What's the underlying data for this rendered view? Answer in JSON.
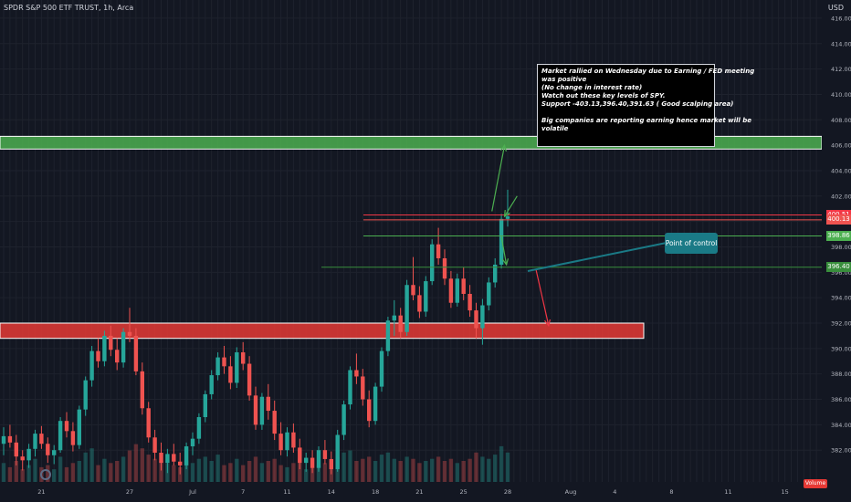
{
  "header": {
    "title": "SPDR S&P 500 ETF TRUST, 1h, Arca",
    "currency": "USD"
  },
  "chart_data": {
    "type": "candlestick",
    "symbol": "SPY",
    "price_range": [
      379.5,
      417
    ],
    "price_ticks": [
      "416.00",
      "414.00",
      "412.00",
      "410.00",
      "408.00",
      "406.00",
      "404.00",
      "402.00",
      "400.00",
      "398.00",
      "396.00",
      "394.00",
      "392.00",
      "390.00",
      "388.00",
      "386.00",
      "384.00",
      "382.00"
    ],
    "time_ticks": [
      {
        "label": "21",
        "i": 6
      },
      {
        "label": "27",
        "i": 20
      },
      {
        "label": "Jul",
        "i": 30
      },
      {
        "label": "7",
        "i": 38
      },
      {
        "label": "11",
        "i": 45
      },
      {
        "label": "14",
        "i": 52
      },
      {
        "label": "18",
        "i": 59
      },
      {
        "label": "21",
        "i": 66
      },
      {
        "label": "25",
        "i": 73
      },
      {
        "label": "28",
        "i": 80
      },
      {
        "label": "Aug",
        "i": 90
      },
      {
        "label": "4",
        "i": 97
      },
      {
        "label": "8",
        "i": 106
      },
      {
        "label": "11",
        "i": 115
      },
      {
        "label": "15",
        "i": 124
      }
    ],
    "key_levels": [
      {
        "price": 400.51,
        "label": "400.51",
        "color": "#f23645"
      },
      {
        "price": 400.13,
        "label": "400.13",
        "color": "#ef5350"
      },
      {
        "price": 398.86,
        "label": "398.86",
        "color": "#4caf50"
      },
      {
        "price": 396.4,
        "label": "396.40",
        "color": "#388e3c"
      }
    ],
    "zones": [
      {
        "type": "resistance",
        "from": 405.7,
        "to": 406.7,
        "color": "#4caf50"
      },
      {
        "type": "support",
        "from": 390.8,
        "to": 392.0,
        "color": "#e53935"
      }
    ],
    "candles": [
      [
        382.5,
        383.8,
        381.6,
        383.1
      ],
      [
        383.1,
        384.0,
        382.2,
        382.6
      ],
      [
        382.6,
        383.2,
        380.8,
        381.5
      ],
      [
        381.5,
        382.0,
        380.4,
        381.2
      ],
      [
        381.2,
        382.5,
        380.6,
        382.1
      ],
      [
        382.1,
        383.6,
        381.5,
        383.3
      ],
      [
        383.3,
        383.9,
        382.1,
        382.5
      ],
      [
        382.5,
        383.0,
        381.0,
        381.6
      ],
      [
        381.6,
        382.4,
        380.9,
        382.0
      ],
      [
        382.0,
        384.6,
        381.8,
        384.3
      ],
      [
        384.3,
        385.0,
        383.0,
        383.5
      ],
      [
        383.5,
        384.2,
        381.9,
        382.4
      ],
      [
        382.4,
        385.5,
        382.1,
        385.2
      ],
      [
        385.2,
        387.8,
        384.7,
        387.5
      ],
      [
        387.5,
        390.2,
        387.0,
        389.8
      ],
      [
        389.8,
        390.8,
        388.5,
        389.0
      ],
      [
        389.0,
        391.4,
        388.6,
        391.0
      ],
      [
        391.0,
        391.8,
        389.4,
        389.9
      ],
      [
        389.9,
        390.8,
        388.3,
        388.9
      ],
      [
        388.9,
        391.6,
        388.5,
        391.3
      ],
      [
        391.3,
        393.2,
        390.5,
        391.0
      ],
      [
        391.0,
        391.6,
        387.9,
        388.2
      ],
      [
        388.2,
        388.9,
        384.8,
        385.3
      ],
      [
        385.3,
        385.8,
        382.6,
        383.0
      ],
      [
        383.0,
        383.6,
        381.2,
        381.8
      ],
      [
        381.8,
        382.6,
        380.4,
        381.0
      ],
      [
        381.0,
        382.1,
        380.2,
        381.7
      ],
      [
        381.7,
        382.5,
        380.8,
        381.1
      ],
      [
        381.1,
        381.8,
        380.1,
        380.8
      ],
      [
        380.8,
        382.6,
        380.5,
        382.3
      ],
      [
        382.3,
        383.4,
        381.6,
        382.9
      ],
      [
        382.9,
        384.9,
        382.5,
        384.6
      ],
      [
        384.6,
        386.7,
        384.2,
        386.4
      ],
      [
        386.4,
        388.3,
        386.0,
        387.9
      ],
      [
        387.9,
        389.7,
        387.5,
        389.3
      ],
      [
        389.3,
        390.2,
        388.0,
        388.6
      ],
      [
        388.6,
        389.4,
        386.8,
        387.3
      ],
      [
        387.3,
        390.1,
        386.9,
        389.7
      ],
      [
        389.7,
        390.5,
        388.3,
        388.8
      ],
      [
        388.8,
        389.4,
        385.9,
        386.3
      ],
      [
        386.3,
        387.0,
        383.6,
        384.0
      ],
      [
        384.0,
        386.5,
        383.6,
        386.2
      ],
      [
        386.2,
        387.2,
        384.4,
        385.1
      ],
      [
        385.1,
        385.9,
        382.8,
        383.3
      ],
      [
        383.3,
        384.2,
        381.6,
        382.0
      ],
      [
        382.0,
        383.8,
        381.5,
        383.4
      ],
      [
        383.4,
        384.1,
        381.8,
        382.2
      ],
      [
        382.2,
        382.9,
        380.5,
        381.0
      ],
      [
        381.0,
        381.8,
        380.3,
        381.4
      ],
      [
        381.4,
        382.0,
        380.2,
        380.6
      ],
      [
        380.6,
        382.3,
        380.3,
        382.0
      ],
      [
        382.0,
        382.8,
        380.9,
        381.3
      ],
      [
        381.3,
        381.9,
        380.1,
        380.5
      ],
      [
        380.5,
        383.6,
        380.3,
        383.2
      ],
      [
        383.2,
        385.9,
        382.8,
        385.6
      ],
      [
        385.6,
        388.6,
        385.2,
        388.3
      ],
      [
        388.3,
        389.6,
        387.2,
        387.8
      ],
      [
        387.8,
        388.4,
        385.5,
        386.0
      ],
      [
        386.0,
        386.7,
        383.8,
        384.3
      ],
      [
        384.3,
        387.3,
        384.0,
        387.0
      ],
      [
        387.0,
        390.1,
        386.6,
        389.8
      ],
      [
        389.8,
        392.5,
        389.4,
        392.2
      ],
      [
        392.2,
        393.8,
        391.0,
        392.6
      ],
      [
        392.6,
        393.2,
        390.8,
        391.3
      ],
      [
        391.3,
        395.4,
        391.0,
        395.0
      ],
      [
        395.0,
        397.2,
        393.8,
        394.2
      ],
      [
        394.2,
        394.9,
        392.4,
        392.9
      ],
      [
        392.9,
        395.7,
        392.5,
        395.3
      ],
      [
        395.3,
        398.6,
        395.0,
        398.2
      ],
      [
        398.2,
        399.5,
        396.6,
        397.1
      ],
      [
        397.1,
        397.8,
        395.0,
        395.5
      ],
      [
        395.5,
        396.1,
        393.2,
        393.6
      ],
      [
        393.6,
        395.9,
        393.3,
        395.5
      ],
      [
        395.5,
        396.4,
        393.8,
        394.3
      ],
      [
        394.3,
        395.0,
        392.5,
        393.0
      ],
      [
        393.0,
        393.6,
        390.8,
        391.6
      ],
      [
        391.6,
        393.9,
        390.3,
        393.4
      ],
      [
        393.4,
        395.6,
        393.0,
        395.2
      ],
      [
        395.2,
        397.1,
        394.8,
        396.6
      ],
      [
        396.6,
        400.6,
        396.3,
        400.2
      ],
      [
        400.2,
        402.5,
        399.6,
        400.4
      ]
    ],
    "volumes": [
      0.45,
      0.35,
      0.5,
      0.3,
      0.4,
      0.55,
      0.35,
      0.4,
      0.3,
      0.6,
      0.35,
      0.45,
      0.5,
      0.7,
      0.8,
      0.4,
      0.55,
      0.45,
      0.5,
      0.6,
      0.75,
      0.9,
      0.8,
      0.65,
      0.55,
      0.5,
      0.45,
      0.4,
      0.35,
      0.5,
      0.45,
      0.55,
      0.6,
      0.5,
      0.65,
      0.4,
      0.45,
      0.55,
      0.4,
      0.5,
      0.6,
      0.45,
      0.5,
      0.55,
      0.4,
      0.35,
      0.45,
      0.55,
      0.3,
      0.35,
      0.4,
      0.45,
      0.5,
      0.6,
      0.7,
      0.75,
      0.5,
      0.55,
      0.6,
      0.5,
      0.65,
      0.7,
      0.55,
      0.5,
      0.6,
      0.55,
      0.45,
      0.5,
      0.55,
      0.6,
      0.5,
      0.55,
      0.45,
      0.5,
      0.55,
      0.7,
      0.6,
      0.55,
      0.65,
      0.85,
      0.7
    ],
    "arrows": [
      {
        "from": [
          77.5,
          400.8
        ],
        "to": [
          79.5,
          406.0
        ],
        "color": "#4caf50"
      },
      {
        "from": [
          81.5,
          402.0
        ],
        "to": [
          79.5,
          400.4
        ],
        "color": "#4caf50"
      },
      {
        "from": [
          79.0,
          398.8
        ],
        "to": [
          79.8,
          396.6
        ],
        "color": "#4caf50"
      },
      {
        "from": [
          84.5,
          396.2
        ],
        "to": [
          86.5,
          391.8
        ],
        "color": "#f23645"
      }
    ]
  },
  "note": {
    "lines": [
      "Market rallied on Wednesday due to Earning / FED meeting",
      "was positive",
      "(No change in interest rate)",
      "Watch out these key levels of SPY.",
      "Support -403.13,396.40,391.63 ( Good scalping area)",
      "",
      "Big companies are reporting earning hence market will be",
      "volatile"
    ]
  },
  "callout": {
    "label": "Point of control"
  },
  "volume_label": "Volume",
  "colors": {
    "up": "#26a69a",
    "down": "#ef5350",
    "grid": "#1e222d",
    "axis_text": "#b2b5be",
    "resistance_zone": "#4caf50",
    "support_zone": "#e53935"
  }
}
